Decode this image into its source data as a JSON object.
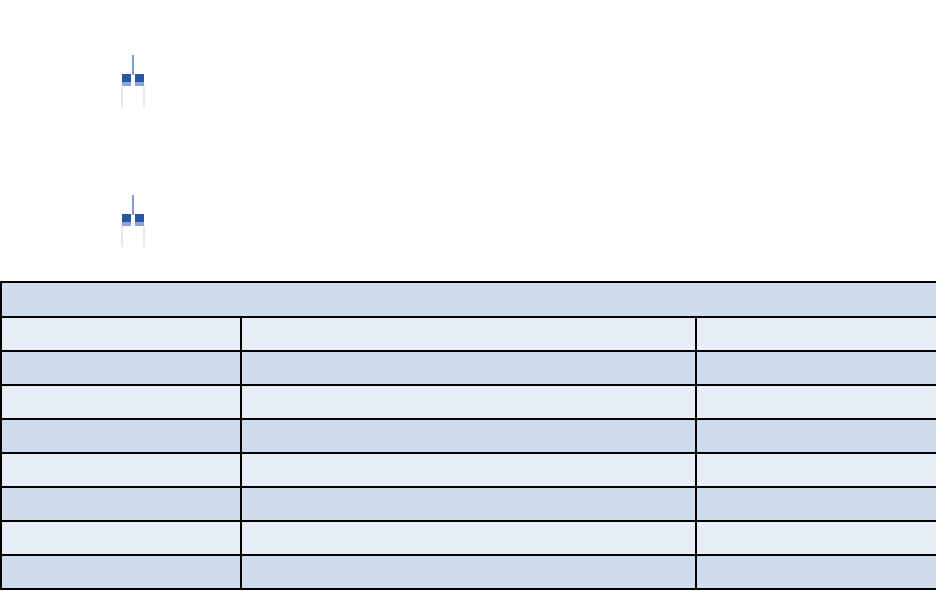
{
  "icons": [
    "fork-icon",
    "fork-icon"
  ],
  "colors": {
    "row_dark": "#cfdcee",
    "row_light": "#e8eef7",
    "border": "#000000",
    "icon": "#2a56a6"
  },
  "table": {
    "header": "",
    "rows": [
      [
        "",
        "",
        ""
      ],
      [
        "",
        "",
        ""
      ],
      [
        "",
        "",
        ""
      ],
      [
        "",
        "",
        ""
      ],
      [
        "",
        "",
        ""
      ],
      [
        "",
        "",
        ""
      ],
      [
        "",
        "",
        ""
      ],
      [
        "",
        "",
        ""
      ]
    ]
  }
}
